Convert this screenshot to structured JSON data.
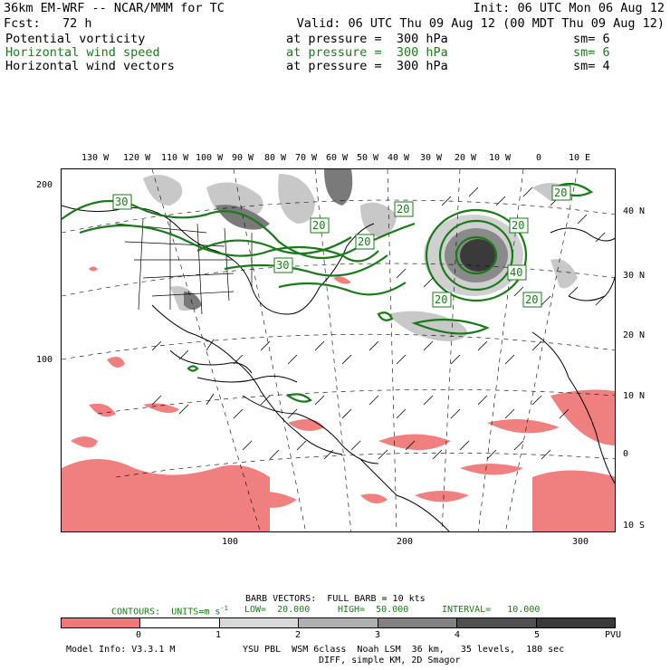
{
  "header": {
    "model": "36km EM-WRF -- NCAR/MMM for TC",
    "init": "Init: 06 UTC Mon 06 Aug 12",
    "fcst": "Fcst:   72 h",
    "valid": "Valid: 06 UTC Thu 09 Aug 12 (00 MDT Thu 09 Aug 12)",
    "fields": [
      {
        "name": "Potential vorticity",
        "level": "at pressure =  300 hPa",
        "sm": "sm= 6",
        "color": "#000000"
      },
      {
        "name": "Horizontal wind speed",
        "level": "at pressure =  300 hPa",
        "sm": "sm= 6",
        "color": "#1a7a1a"
      },
      {
        "name": "Horizontal wind vectors",
        "level": "at pressure =  300 hPa",
        "sm": "sm= 4",
        "color": "#000000"
      }
    ]
  },
  "map": {
    "top_lon_labels": [
      "130 W",
      "120 W",
      "110 W",
      "100 W",
      "90 W",
      "80 W",
      "70 W",
      "60 W",
      "50 W",
      "40 W",
      "30 W",
      "20 W",
      "10 W",
      "0",
      "10 E"
    ],
    "right_lat_labels": [
      "40 N",
      "30 N",
      "20 N",
      "10 N",
      "0",
      "10 S"
    ],
    "left_grid_labels": [
      "200",
      "100"
    ],
    "bottom_grid_labels": [
      "100",
      "200",
      "300"
    ],
    "contour_labels": [
      "30",
      "20",
      "20",
      "20",
      "30",
      "20",
      "40",
      "20",
      "20",
      "20"
    ]
  },
  "footer": {
    "barb_vectors": "BARB VECTORS:  FULL BARB = 10 kts",
    "contours": "CONTOURS:  UNITS=m s",
    "contours_sup": "-1",
    "low": "LOW=  20.000",
    "high": "HIGH=  50.000",
    "interval": "INTERVAL=   10.000",
    "scale_labels": [
      "0",
      "1",
      "2",
      "3",
      "4",
      "5",
      "PVU"
    ],
    "scale_colors": [
      "#f07878",
      "#ffffff",
      "#d8d8d8",
      "#b0b0b0",
      "#808080",
      "#505050",
      "#3a3a3a"
    ],
    "model_info": "Model Info: V3.3.1 M",
    "physics1": "YSU PBL  WSM 6class  Noah LSM  36 km,   35 levels,  180 sec",
    "physics2": "DIFF, simple KM, 2D Smagor"
  }
}
